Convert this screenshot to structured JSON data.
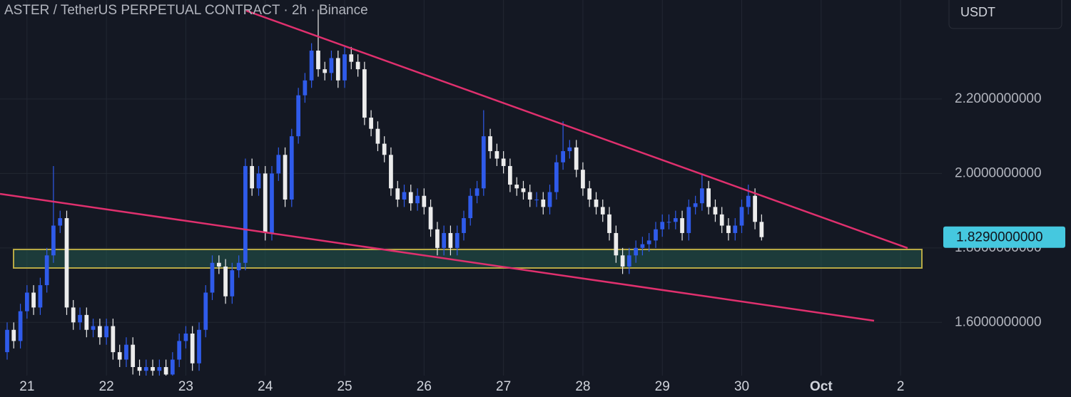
{
  "chart_data": {
    "type": "candlestick",
    "title": "ASTER / TetherUS PERPETUAL CONTRACT · 2h · Binance",
    "currency": "USDT",
    "up_color": "#2f5bea",
    "down_color": "#ececec",
    "grid": true,
    "xlim": [
      20.66,
      32.52
    ],
    "ylim": [
      1.457,
      2.466
    ],
    "xticks": [
      21,
      22,
      23,
      24,
      25,
      26,
      27,
      28,
      29,
      30,
      {
        "value": 31,
        "label": "Oct"
      },
      {
        "value": 32,
        "label": "2"
      }
    ],
    "yticks": [
      {
        "value": 1.6,
        "label": "1.6000000000"
      },
      {
        "value": 1.8,
        "label": "1.8000000000"
      },
      {
        "value": 2.0,
        "label": "2.0000000000"
      },
      {
        "value": 2.2,
        "label": "2.2000000000"
      }
    ],
    "last_price": {
      "value": 1.829,
      "label": "1.8290000000"
    },
    "x": [
      20.75,
      20.833,
      20.917,
      21,
      21.083,
      21.167,
      21.25,
      21.333,
      21.417,
      21.5,
      21.583,
      21.667,
      21.75,
      21.833,
      21.917,
      22,
      22.083,
      22.167,
      22.25,
      22.333,
      22.417,
      22.5,
      22.583,
      22.667,
      22.75,
      22.833,
      22.917,
      23,
      23.083,
      23.167,
      23.25,
      23.333,
      23.417,
      23.5,
      23.583,
      23.667,
      23.75,
      23.833,
      23.917,
      24,
      24.083,
      24.167,
      24.25,
      24.333,
      24.417,
      24.5,
      24.583,
      24.667,
      24.75,
      24.833,
      24.917,
      25,
      25.083,
      25.167,
      25.25,
      25.333,
      25.417,
      25.5,
      25.583,
      25.667,
      25.75,
      25.833,
      25.917,
      26,
      26.083,
      26.167,
      26.25,
      26.333,
      26.417,
      26.5,
      26.583,
      26.667,
      26.75,
      26.833,
      26.917,
      27,
      27.083,
      27.167,
      27.25,
      27.333,
      27.417,
      27.5,
      27.583,
      27.667,
      27.75,
      27.833,
      27.917,
      28,
      28.083,
      28.167,
      28.25,
      28.333,
      28.417,
      28.5,
      28.583,
      28.667,
      28.75,
      28.833,
      28.917,
      29,
      29.083,
      29.167,
      29.25,
      29.333,
      29.417,
      29.5,
      29.583,
      29.667,
      29.75,
      29.833,
      29.917,
      30,
      30.083,
      30.167,
      30.25
    ],
    "open": [
      1.52,
      1.58,
      1.55,
      1.63,
      1.68,
      1.64,
      1.7,
      1.78,
      1.86,
      1.88,
      1.64,
      1.6,
      1.62,
      1.58,
      1.59,
      1.56,
      1.59,
      1.52,
      1.5,
      1.54,
      1.48,
      1.47,
      1.48,
      1.47,
      1.48,
      1.46,
      1.5,
      1.55,
      1.57,
      1.49,
      1.58,
      1.68,
      1.76,
      1.75,
      1.67,
      1.74,
      1.76,
      2.02,
      1.96,
      2.0,
      1.84,
      2.0,
      2.05,
      1.93,
      2.1,
      2.21,
      2.25,
      2.33,
      2.28,
      2.27,
      2.31,
      2.25,
      2.32,
      2.3,
      2.28,
      2.15,
      2.12,
      2.08,
      2.05,
      1.96,
      1.93,
      1.95,
      1.92,
      1.94,
      1.91,
      1.85,
      1.8,
      1.84,
      1.8,
      1.84,
      1.88,
      1.94,
      1.96,
      2.1,
      2.06,
      2.04,
      2.02,
      1.97,
      1.96,
      1.95,
      1.93,
      1.93,
      1.91,
      1.95,
      2.03,
      2.06,
      2.07,
      2.01,
      1.96,
      1.93,
      1.91,
      1.89,
      1.84,
      1.78,
      1.75,
      1.78,
      1.8,
      1.81,
      1.82,
      1.85,
      1.87,
      1.87,
      1.88,
      1.84,
      1.91,
      1.92,
      1.96,
      1.91,
      1.89,
      1.86,
      1.84,
      1.86,
      1.91,
      1.94,
      1.87
    ],
    "high": [
      1.6,
      1.6,
      1.65,
      1.7,
      1.7,
      1.72,
      1.8,
      2.02,
      1.9,
      1.9,
      1.66,
      1.64,
      1.64,
      1.61,
      1.61,
      1.61,
      1.61,
      1.54,
      1.56,
      1.56,
      1.5,
      1.5,
      1.5,
      1.5,
      1.5,
      1.52,
      1.57,
      1.59,
      1.59,
      1.6,
      1.7,
      1.78,
      1.78,
      1.77,
      1.76,
      1.78,
      2.04,
      2.04,
      2.02,
      2.02,
      2.02,
      2.07,
      2.07,
      2.12,
      2.23,
      2.27,
      2.35,
      2.44,
      2.3,
      2.33,
      2.33,
      2.34,
      2.34,
      2.32,
      2.3,
      2.17,
      2.14,
      2.1,
      2.07,
      1.98,
      1.97,
      1.97,
      1.96,
      1.96,
      1.93,
      1.87,
      1.86,
      1.86,
      1.86,
      1.9,
      1.96,
      1.98,
      2.17,
      2.12,
      2.08,
      2.06,
      2.04,
      1.99,
      1.98,
      1.97,
      1.95,
      1.95,
      1.97,
      2.05,
      2.14,
      2.09,
      2.09,
      2.03,
      1.98,
      1.95,
      1.93,
      1.91,
      1.86,
      1.8,
      1.8,
      1.82,
      1.83,
      1.84,
      1.87,
      1.89,
      1.89,
      1.9,
      1.9,
      1.93,
      1.94,
      2.0,
      1.98,
      1.93,
      1.91,
      1.88,
      1.88,
      1.93,
      1.97,
      1.96,
      1.89
    ],
    "low": [
      1.5,
      1.53,
      1.53,
      1.61,
      1.62,
      1.62,
      1.68,
      1.76,
      1.84,
      1.62,
      1.58,
      1.58,
      1.56,
      1.56,
      1.54,
      1.54,
      1.5,
      1.48,
      1.48,
      1.46,
      1.45,
      1.45,
      1.45,
      1.45,
      1.44,
      1.44,
      1.48,
      1.53,
      1.47,
      1.47,
      1.56,
      1.66,
      1.73,
      1.65,
      1.65,
      1.72,
      1.74,
      1.94,
      1.94,
      1.82,
      1.82,
      1.98,
      1.91,
      1.91,
      2.08,
      2.19,
      2.23,
      2.26,
      2.25,
      2.25,
      2.23,
      2.23,
      2.28,
      2.26,
      2.13,
      2.1,
      2.06,
      2.03,
      1.94,
      1.91,
      1.91,
      1.9,
      1.9,
      1.89,
      1.83,
      1.78,
      1.78,
      1.78,
      1.78,
      1.82,
      1.86,
      1.92,
      1.94,
      2.04,
      2.02,
      2.0,
      1.95,
      1.94,
      1.93,
      1.91,
      1.91,
      1.89,
      1.89,
      1.93,
      2.01,
      2.04,
      1.99,
      1.94,
      1.91,
      1.89,
      1.87,
      1.82,
      1.76,
      1.73,
      1.73,
      1.76,
      1.78,
      1.79,
      1.8,
      1.83,
      1.85,
      1.85,
      1.82,
      1.82,
      1.89,
      1.9,
      1.89,
      1.87,
      1.84,
      1.82,
      1.82,
      1.84,
      1.89,
      1.85,
      1.82
    ],
    "close": [
      1.58,
      1.55,
      1.63,
      1.68,
      1.64,
      1.7,
      1.78,
      1.86,
      1.88,
      1.64,
      1.6,
      1.62,
      1.58,
      1.59,
      1.56,
      1.59,
      1.52,
      1.5,
      1.54,
      1.48,
      1.47,
      1.48,
      1.47,
      1.48,
      1.46,
      1.5,
      1.55,
      1.57,
      1.49,
      1.58,
      1.68,
      1.76,
      1.75,
      1.67,
      1.74,
      1.76,
      2.02,
      1.96,
      2.0,
      1.84,
      2.0,
      2.05,
      1.93,
      2.1,
      2.21,
      2.25,
      2.33,
      2.28,
      2.27,
      2.31,
      2.25,
      2.32,
      2.3,
      2.28,
      2.15,
      2.12,
      2.08,
      2.05,
      1.96,
      1.93,
      1.95,
      1.92,
      1.94,
      1.91,
      1.85,
      1.8,
      1.84,
      1.8,
      1.84,
      1.88,
      1.94,
      1.96,
      2.1,
      2.06,
      2.04,
      2.02,
      1.97,
      1.96,
      1.95,
      1.93,
      1.93,
      1.91,
      1.95,
      2.03,
      2.06,
      2.07,
      2.01,
      1.96,
      1.93,
      1.91,
      1.89,
      1.84,
      1.78,
      1.75,
      1.78,
      1.8,
      1.81,
      1.82,
      1.85,
      1.87,
      1.87,
      1.88,
      1.84,
      1.91,
      1.92,
      1.96,
      1.91,
      1.89,
      1.86,
      1.84,
      1.86,
      1.91,
      1.94,
      1.87,
      1.829
    ]
  }
}
